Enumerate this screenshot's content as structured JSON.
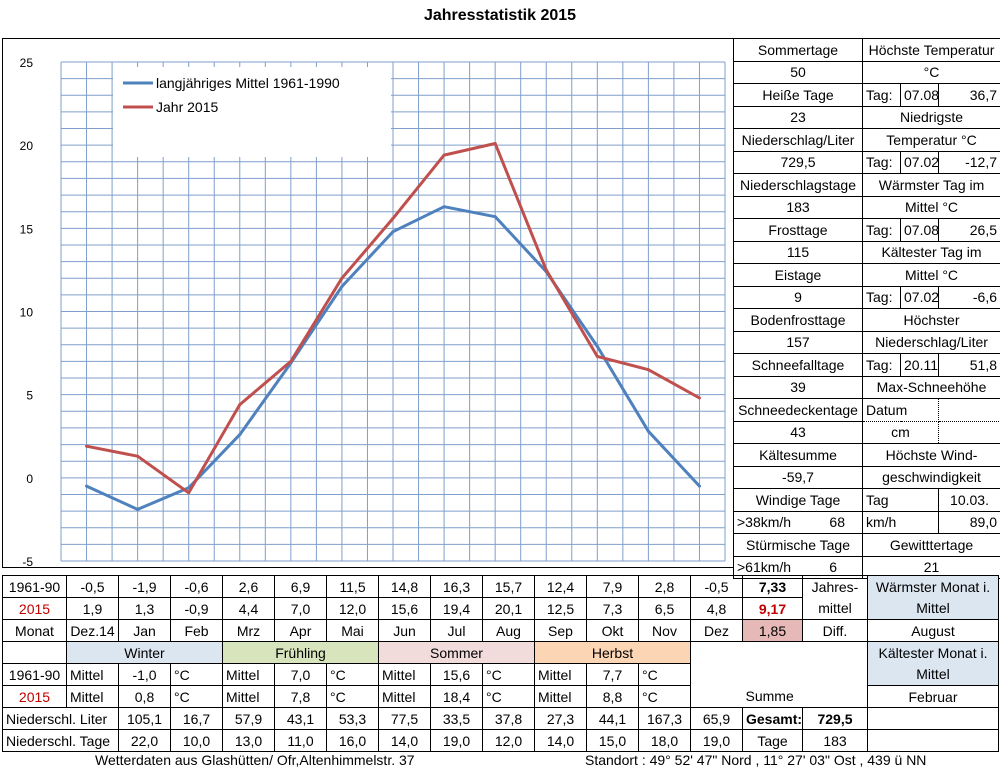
{
  "title": "Jahresstatistik 2015",
  "chart_data": {
    "type": "line",
    "categories": [
      "Dez.14",
      "Jan",
      "Feb",
      "Mrz",
      "Apr",
      "Mai",
      "Jun",
      "Jul",
      "Aug",
      "Sep",
      "Okt",
      "Nov",
      "Dez"
    ],
    "series": [
      {
        "name": "langjähriges Mittel 1961-1990",
        "color": "#4f81bd",
        "values": [
          -0.5,
          -1.9,
          -0.6,
          2.6,
          6.9,
          11.5,
          14.8,
          16.3,
          15.7,
          12.4,
          7.9,
          2.8,
          -0.5
        ]
      },
      {
        "name": "Jahr 2015",
        "color": "#c0504d",
        "values": [
          1.9,
          1.3,
          -0.9,
          4.4,
          7.0,
          12.0,
          15.6,
          19.4,
          20.1,
          12.5,
          7.3,
          6.5,
          4.8
        ]
      }
    ],
    "ylim": [
      -5,
      25
    ],
    "yticks": [
      "25",
      "20",
      "15",
      "10",
      "5",
      "0",
      "-5"
    ],
    "grid": true,
    "legend": "top-left"
  },
  "side": {
    "sommertage_label": "Sommertage",
    "sommertage": "50",
    "hoechste_temp_label1": "Höchste Temperatur",
    "hoechste_temp_label2": "°C",
    "heisse_label": "Heiße Tage",
    "heisse": "23",
    "tag_label": "Tag:",
    "ht_date": "07.08.",
    "ht_val": "36,7",
    "niedrigste_label1": "Niedrigste",
    "niedrigste_label2": "Temperatur °C",
    "niederschlag_label": "Niederschlag/Liter",
    "niederschlag": "729,5",
    "nt_date": "07.02.",
    "nt_val": "-12,7",
    "niederschlagstage_label": "Niederschlagstage",
    "niederschlagstage": "183",
    "waermster_tag_label1": "Wärmster Tag im",
    "waermster_tag_label2": "Mittel °C",
    "frosttage_label": "Frosttage",
    "frosttage": "115",
    "wt_date": "07.08.",
    "wt_val": "26,5",
    "kaeltester_tag_label1": "Kältester Tag im",
    "kaeltester_tag_label2": "Mittel °C",
    "eistage_label": "Eistage",
    "eistage": "9",
    "kt_date": "07.02.",
    "kt_val": "-6,6",
    "bodenfrost_label": "Bodenfrosttage",
    "bodenfrost": "157",
    "hoechster_ns_label1": "Höchster",
    "hoechster_ns_label2": "Niederschlag/Liter",
    "schneefall_label": "Schneefalltage",
    "schneefall": "39",
    "hn_date": "20.11.",
    "hn_val": "51,8",
    "max_schnee_label": "Max-Schneehöhe",
    "schneedecke_label": "Schneedeckentage",
    "schneedecke": "43",
    "datum_label": "Datum",
    "cm_label": "cm",
    "kaeltesumme_label": "Kältesumme",
    "kaeltesumme": "-59,7",
    "wind_label1": "Höchste Wind-",
    "wind_label2": "geschwindigkeit",
    "windige_label": "Windige Tage",
    "tag_word": "Tag",
    "wind_date": "10.03.",
    "w38_label": ">38km/h",
    "w38": "68",
    "kmh_label": "km/h",
    "wind_val": "89,0",
    "stuermische_label": "Stürmische Tage",
    "gewitter_label": "Gewitttertage",
    "w61_label": ">61km/h",
    "w61": "6",
    "gewitter": "21"
  },
  "table": {
    "row1_label": "1961-90",
    "row1": [
      "-0,5",
      "-1,9",
      "-0,6",
      "2,6",
      "6,9",
      "11,5",
      "14,8",
      "16,3",
      "15,7",
      "12,4",
      "7,9",
      "2,8",
      "-0,5"
    ],
    "row1_mean": "7,33",
    "row2_label": "2015",
    "row2": [
      "1,9",
      "1,3",
      "-0,9",
      "4,4",
      "7,0",
      "12,0",
      "15,6",
      "19,4",
      "20,1",
      "12,5",
      "7,3",
      "6,5",
      "4,8"
    ],
    "row2_mean": "9,17",
    "jahres_label1": "Jahres-",
    "jahres_label2": "mittel",
    "monat_label": "Monat",
    "months": [
      "Dez.14",
      "Jan",
      "Feb",
      "Mrz",
      "Apr",
      "Mai",
      "Jun",
      "Jul",
      "Aug",
      "Sep",
      "Okt",
      "Nov",
      "Dez"
    ],
    "diff_val": "1,85",
    "diff_label": "Diff.",
    "waermster_monat_label1": "Wärmster Monat i.",
    "waermster_monat_label2": "Mittel",
    "waermster_monat": "August",
    "seasons": [
      "Winter",
      "Frühling",
      "Sommer",
      "Herbst"
    ],
    "mittel_label": "Mittel",
    "deg": "°C",
    "season_1961": [
      "-1,0",
      "7,0",
      "15,6",
      "7,7"
    ],
    "season_2015": [
      "0,8",
      "7,8",
      "18,4",
      "8,8"
    ],
    "kaeltester_monat_label1": "Kältester Monat i.",
    "kaeltester_monat_label2": "Mittel",
    "kaeltester_monat": "Februar",
    "summe_label": "Summe",
    "ns_liter_label": "Niederschl. Liter",
    "ns_liter": [
      "105,1",
      "16,7",
      "57,9",
      "43,1",
      "53,3",
      "77,5",
      "33,5",
      "37,8",
      "27,3",
      "44,1",
      "167,3",
      "65,9"
    ],
    "gesamt_label": "Gesamt:",
    "gesamt": "729,5",
    "ns_tage_label": "Niederschl. Tage",
    "ns_tage": [
      "22,0",
      "10,0",
      "13,0",
      "11,0",
      "16,0",
      "14,0",
      "19,0",
      "12,0",
      "14,0",
      "15,0",
      "18,0",
      "19,0"
    ],
    "tage_label": "Tage",
    "tage": "183"
  },
  "footer": {
    "left": "Wetterdaten aus Glashütten/ Ofr,Altenhimmelstr. 37",
    "right": "Standort : 49° 52' 47\" Nord , 11° 27' 03\" Ost  , 439 ü NN"
  }
}
